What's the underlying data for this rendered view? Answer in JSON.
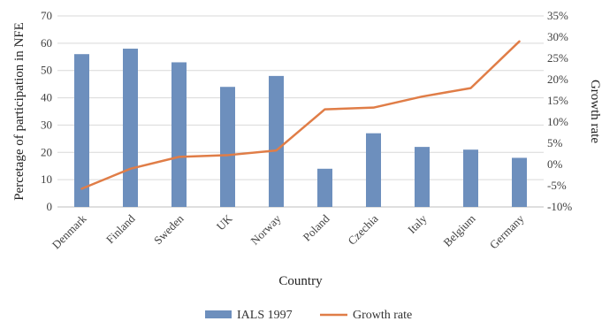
{
  "chart_data": {
    "type": "bar",
    "categories": [
      "Denmark",
      "Finland",
      "Sweden",
      "UK",
      "Norway",
      "Poland",
      "Czechia",
      "Italy",
      "Belgium",
      "Germany"
    ],
    "xlabel": "Country",
    "ylabel": "Percetage of participation in NFE",
    "y2label": "Growth rate",
    "ylim": [
      0,
      70
    ],
    "yticks": [
      0,
      10,
      20,
      30,
      40,
      50,
      60,
      70
    ],
    "y2lim": [
      -10,
      35
    ],
    "y2ticks": [
      -10,
      -5,
      0,
      5,
      10,
      15,
      20,
      25,
      30,
      35
    ],
    "y2tick_suffix": "%",
    "series": [
      {
        "name": "IALS 1997",
        "kind": "bar",
        "axis": "left",
        "color": "#6d8fbd",
        "values": [
          56,
          58,
          53,
          44,
          48,
          14,
          27,
          22,
          21,
          18
        ]
      },
      {
        "name": "Growth rate",
        "kind": "line",
        "axis": "right",
        "color": "#e07d47",
        "values": [
          -5.7,
          -1.0,
          1.8,
          2.2,
          3.3,
          13.0,
          13.4,
          16.0,
          18.0,
          29.0
        ]
      }
    ],
    "legend_position": "bottom",
    "grid": true
  }
}
